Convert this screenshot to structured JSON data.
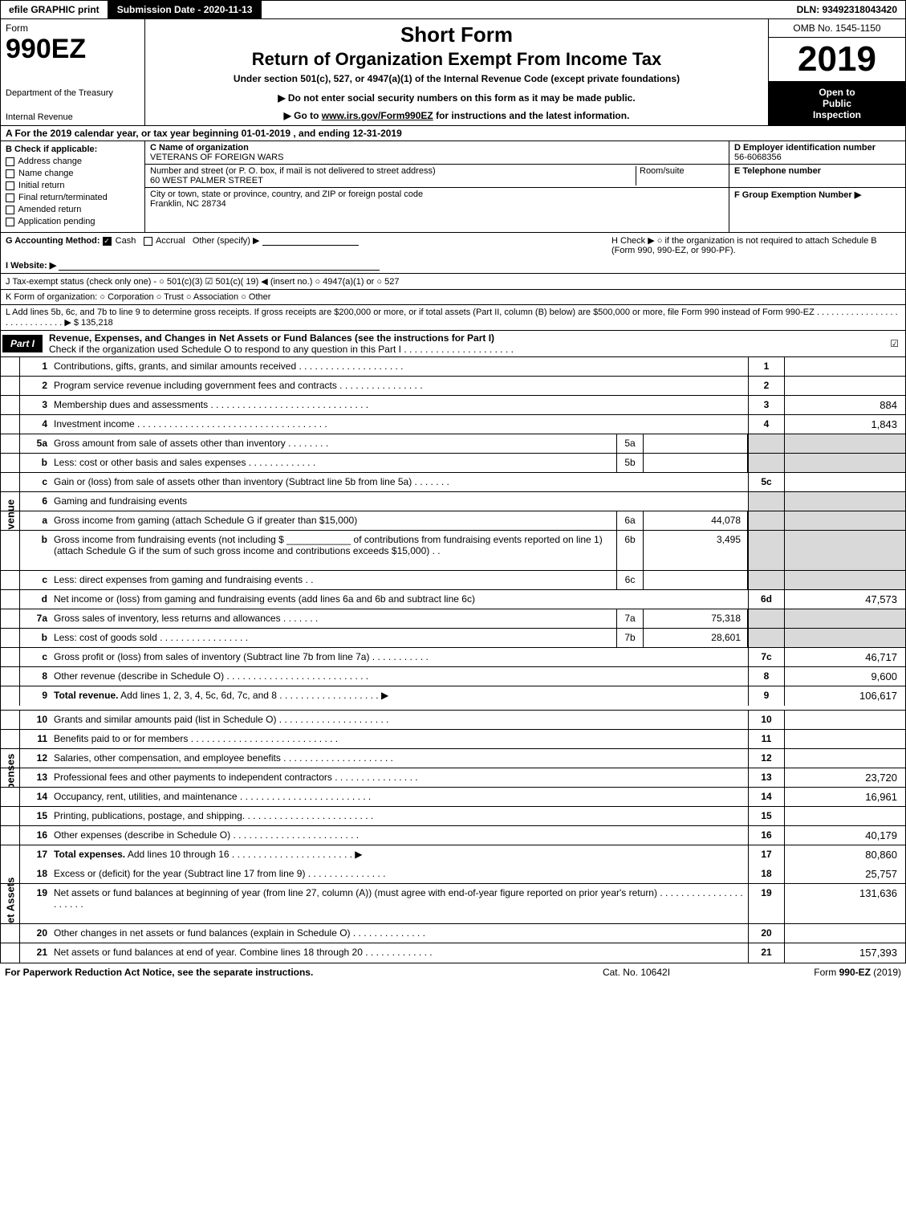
{
  "colors": {
    "black": "#000000",
    "white": "#ffffff",
    "shade": "#d9d9d9"
  },
  "topbar": {
    "efile": "efile GRAPHIC print",
    "submission": "Submission Date - 2020-11-13",
    "dln": "DLN: 93492318043420"
  },
  "header": {
    "form_label": "Form",
    "form_number": "990EZ",
    "dept": "Department of the Treasury",
    "irs": "Internal Revenue",
    "title1": "Short Form",
    "title2": "Return of Organization Exempt From Income Tax",
    "subtitle": "Under section 501(c), 527, or 4947(a)(1) of the Internal Revenue Code (except private foundations)",
    "notice1": "▶ Do not enter social security numbers on this form as it may be made public.",
    "notice2_pre": "▶ Go to ",
    "notice2_link": "www.irs.gov/Form990EZ",
    "notice2_post": " for instructions and the latest information.",
    "omb": "OMB No. 1545-1150",
    "year": "2019",
    "inspection_l1": "Open to",
    "inspection_l2": "Public",
    "inspection_l3": "Inspection"
  },
  "row_a": "A  For the 2019 calendar year, or tax year beginning 01-01-2019 , and ending 12-31-2019",
  "section_b": {
    "b_title": "B  Check if applicable:",
    "checks": [
      "Address change",
      "Name change",
      "Initial return",
      "Final return/terminated",
      "Amended return",
      "Application pending"
    ],
    "c_name_lbl": "C Name of organization",
    "c_name": "VETERANS OF FOREIGN WARS",
    "c_street_lbl": "Number and street (or P. O. box, if mail is not delivered to street address)",
    "c_room_lbl": "Room/suite",
    "c_street": "60 WEST PALMER STREET",
    "c_city_lbl": "City or town, state or province, country, and ZIP or foreign postal code",
    "c_city": "Franklin, NC  28734",
    "d_ein_lbl": "D Employer identification number",
    "d_ein": "56-6068356",
    "e_tel_lbl": "E Telephone number",
    "f_group_lbl": "F Group Exemption Number  ▶"
  },
  "misc": {
    "g": "G Accounting Method:  ",
    "g_cash": "Cash",
    "g_accrual": "Accrual",
    "g_other": "Other (specify) ▶",
    "h": "H  Check ▶  ○  if the organization is not required to attach Schedule B (Form 990, 990-EZ, or 990-PF).",
    "i": "I Website: ▶",
    "j": "J Tax-exempt status (check only one) -  ○ 501(c)(3)  ☑ 501(c)( 19) ◀ (insert no.)  ○ 4947(a)(1) or  ○ 527",
    "k": "K Form of organization:   ○ Corporation   ○ Trust   ○ Association   ○ Other",
    "l": "L Add lines 5b, 6c, and 7b to line 9 to determine gross receipts. If gross receipts are $200,000 or more, or if total assets (Part II, column (B) below) are $500,000 or more, file Form 990 instead of Form 990-EZ . . . . . . . . . . . . . . . . . . . . . . . . . . . . . ▶ $ 135,218"
  },
  "part1": {
    "label": "Part I",
    "title": "Revenue, Expenses, and Changes in Net Assets or Fund Balances (see the instructions for Part I)",
    "check_note": "Check if the organization used Schedule O to respond to any question in this Part I . . . . . . . . . . . . . . . . . . . . .",
    "checked": "☑"
  },
  "side_labels": {
    "revenue": "Revenue",
    "expenses": "Expenses",
    "netassets": "Net Assets"
  },
  "rows": [
    {
      "group": "revenue",
      "n": "1",
      "desc": "Contributions, gifts, grants, and similar amounts received . . . . . . . . . . . . . . . . . . . .",
      "num": "1",
      "amt": ""
    },
    {
      "group": "revenue",
      "n": "2",
      "desc": "Program service revenue including government fees and contracts . . . . . . . . . . . . . . . .",
      "num": "2",
      "amt": ""
    },
    {
      "group": "revenue",
      "n": "3",
      "desc": "Membership dues and assessments . . . . . . . . . . . . . . . . . . . . . . . . . . . . . .",
      "num": "3",
      "amt": "884"
    },
    {
      "group": "revenue",
      "n": "4",
      "desc": "Investment income . . . . . . . . . . . . . . . . . . . . . . . . . . . . . . . . . . . .",
      "num": "4",
      "amt": "1,843"
    },
    {
      "group": "revenue",
      "n": "5a",
      "desc": "Gross amount from sale of assets other than inventory . . . . . . . .",
      "midn": "5a",
      "midv": "",
      "shade": true
    },
    {
      "group": "revenue",
      "n": "b",
      "desc": "Less: cost or other basis and sales expenses . . . . . . . . . . . . .",
      "midn": "5b",
      "midv": "",
      "shade": true
    },
    {
      "group": "revenue",
      "n": "c",
      "desc": "Gain or (loss) from sale of assets other than inventory (Subtract line 5b from line 5a) . . . . . . .",
      "num": "5c",
      "amt": ""
    },
    {
      "group": "revenue",
      "n": "6",
      "desc": "Gaming and fundraising events",
      "shade": true
    },
    {
      "group": "revenue",
      "n": "a",
      "desc": "Gross income from gaming (attach Schedule G if greater than $15,000)",
      "midn": "6a",
      "midv": "44,078",
      "shade": true
    },
    {
      "group": "revenue",
      "n": "b",
      "desc": "Gross income from fundraising events (not including $ ____________ of contributions from fundraising events reported on line 1) (attach Schedule G if the sum of such gross income and contributions exceeds $15,000)   . .",
      "midn": "6b",
      "midv": "3,495",
      "shade": true,
      "tall": true
    },
    {
      "group": "revenue",
      "n": "c",
      "desc": "Less: direct expenses from gaming and fundraising events     . .",
      "midn": "6c",
      "midv": "",
      "shade": true
    },
    {
      "group": "revenue",
      "n": "d",
      "desc": "Net income or (loss) from gaming and fundraising events (add lines 6a and 6b and subtract line 6c)",
      "num": "6d",
      "amt": "47,573"
    },
    {
      "group": "revenue",
      "n": "7a",
      "desc": "Gross sales of inventory, less returns and allowances . . . . . . .",
      "midn": "7a",
      "midv": "75,318",
      "shade": true
    },
    {
      "group": "revenue",
      "n": "b",
      "desc": "Less: cost of goods sold    . . . . . . . . . . . . . . . . .",
      "midn": "7b",
      "midv": "28,601",
      "shade": true
    },
    {
      "group": "revenue",
      "n": "c",
      "desc": "Gross profit or (loss) from sales of inventory (Subtract line 7b from line 7a) . . . . . . . . . . .",
      "num": "7c",
      "amt": "46,717"
    },
    {
      "group": "revenue",
      "n": "8",
      "desc": "Other revenue (describe in Schedule O) . . . . . . . . . . . . . . . . . . . . . . . . . . .",
      "num": "8",
      "amt": "9,600"
    },
    {
      "group": "revenue",
      "n": "9",
      "descbold": "Total revenue.",
      "desc": " Add lines 1, 2, 3, 4, 5c, 6d, 7c, and 8 . . . . . . . . . . . . . . . . . . .  ▶",
      "num": "9",
      "amt": "106,617",
      "last": true
    }
  ],
  "exp_rows": [
    {
      "n": "10",
      "desc": "Grants and similar amounts paid (list in Schedule O) . . . . . . . . . . . . . . . . . . . . .",
      "num": "10",
      "amt": ""
    },
    {
      "n": "11",
      "desc": "Benefits paid to or for members    . . . . . . . . . . . . . . . . . . . . . . . . . . . .",
      "num": "11",
      "amt": ""
    },
    {
      "n": "12",
      "desc": "Salaries, other compensation, and employee benefits . . . . . . . . . . . . . . . . . . . . .",
      "num": "12",
      "amt": ""
    },
    {
      "n": "13",
      "desc": "Professional fees and other payments to independent contractors . . . . . . . . . . . . . . . .",
      "num": "13",
      "amt": "23,720"
    },
    {
      "n": "14",
      "desc": "Occupancy, rent, utilities, and maintenance . . . . . . . . . . . . . . . . . . . . . . . . .",
      "num": "14",
      "amt": "16,961"
    },
    {
      "n": "15",
      "desc": "Printing, publications, postage, and shipping. . . . . . . . . . . . . . . . . . . . . . . . .",
      "num": "15",
      "amt": ""
    },
    {
      "n": "16",
      "desc": "Other expenses (describe in Schedule O)    . . . . . . . . . . . . . . . . . . . . . . . .",
      "num": "16",
      "amt": "40,179"
    },
    {
      "n": "17",
      "descbold": "Total expenses.",
      "desc": " Add lines 10 through 16    . . . . . . . . . . . . . . . . . . . . . . .  ▶",
      "num": "17",
      "amt": "80,860",
      "last": true
    }
  ],
  "net_rows": [
    {
      "n": "18",
      "desc": "Excess or (deficit) for the year (Subtract line 17 from line 9)      . . . . . . . . . . . . . . .",
      "num": "18",
      "amt": "25,757"
    },
    {
      "n": "19",
      "desc": "Net assets or fund balances at beginning of year (from line 27, column (A)) (must agree with end-of-year figure reported on prior year's return) . . . . . . . . . . . . . . . . . . . . . .",
      "num": "19",
      "amt": "131,636",
      "tall": true
    },
    {
      "n": "20",
      "desc": "Other changes in net assets or fund balances (explain in Schedule O) . . . . . . . . . . . . . .",
      "num": "20",
      "amt": ""
    },
    {
      "n": "21",
      "desc": "Net assets or fund balances at end of year. Combine lines 18 through 20 . . . . . . . . . . . . .",
      "num": "21",
      "amt": "157,393",
      "last": true
    }
  ],
  "footer": {
    "left": "For Paperwork Reduction Act Notice, see the separate instructions.",
    "mid": "Cat. No. 10642I",
    "right_pre": "Form ",
    "right_bold": "990-EZ",
    "right_post": " (2019)"
  }
}
